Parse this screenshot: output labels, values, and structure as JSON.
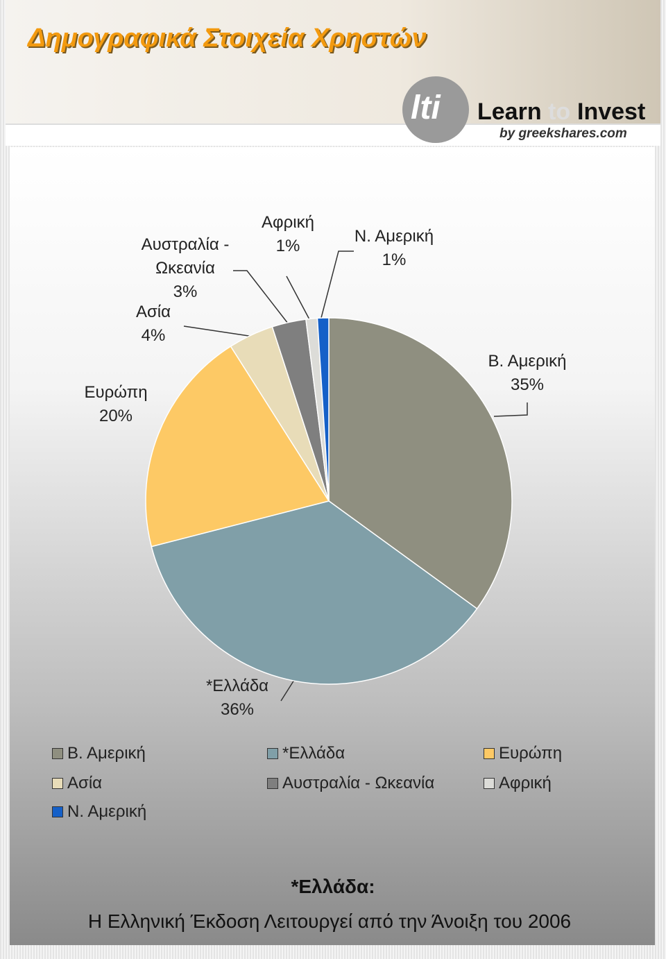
{
  "header": {
    "title": "Δημογραφικά Στοιχεία Χρηστών",
    "logo_mark": "lti",
    "logo_learn": "Learn",
    "logo_to": "to",
    "logo_invest": "Invest",
    "logo_by": "by greekshares.com"
  },
  "chart_data": {
    "type": "pie",
    "categories": [
      "Β. Αμερική",
      "*Ελλάδα",
      "Ευρώπη",
      "Ασία",
      "Αυστραλία - Ωκεανία",
      "Αφρική",
      "Ν. Αμερική"
    ],
    "values": [
      35,
      36,
      20,
      4,
      3,
      1,
      1
    ],
    "value_labels": [
      "35%",
      "36%",
      "20%",
      "4%",
      "3%",
      "1%",
      "1%"
    ],
    "colors": [
      "#8f8f80",
      "#809fa8",
      "#fdc965",
      "#e8dcb8",
      "#7f7f7f",
      "#dcdcd8",
      "#1560c8"
    ],
    "legend": "bottom"
  },
  "footnote": {
    "heading": "*Ελλάδα:",
    "text": "Η Ελληνική Έκδοση Λειτουργεί από την Άνοιξη του 2006"
  }
}
